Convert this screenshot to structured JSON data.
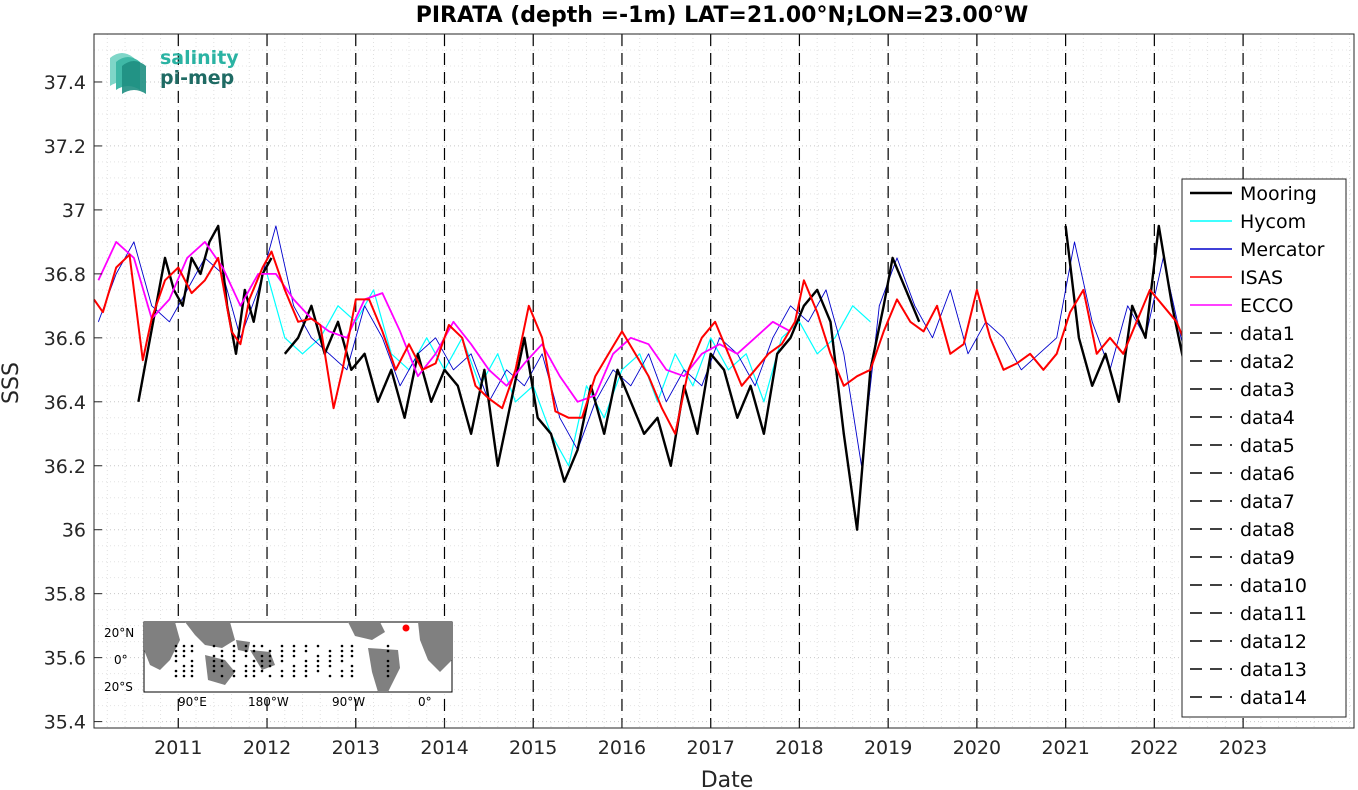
{
  "chart_data": {
    "type": "line",
    "title": "PIRATA (depth =-1m) LAT=21.00°N;LON=23.00°W",
    "xlabel": "Date",
    "ylabel": "SSS",
    "xlim": [
      2010.05,
      2024.25
    ],
    "ylim": [
      35.38,
      37.55
    ],
    "x_ticks": [
      "2011",
      "2012",
      "2013",
      "2014",
      "2015",
      "2016",
      "2017",
      "2018",
      "2019",
      "2020",
      "2021",
      "2022",
      "2023"
    ],
    "y_ticks": [
      "35.4",
      "35.6",
      "35.8",
      "36",
      "36.2",
      "36.4",
      "36.6",
      "36.8",
      "37",
      "37.2",
      "37.4"
    ],
    "grid": "on",
    "legend_position": "right",
    "vertical_lines_x": [
      2011,
      2012,
      2013,
      2014,
      2015,
      2016,
      2017,
      2018,
      2019,
      2020,
      2021,
      2022,
      2023
    ],
    "series": [
      {
        "name": "Mooring",
        "color": "#000000",
        "segments": [
          {
            "x": [
              2010.55,
              2010.65,
              2010.75,
              2010.85,
              2010.95,
              2011.05,
              2011.15,
              2011.25,
              2011.35,
              2011.45,
              2011.55,
              2011.65,
              2011.75,
              2011.85,
              2011.95,
              2012.05
            ],
            "y": [
              36.4,
              36.55,
              36.7,
              36.85,
              36.75,
              36.7,
              36.85,
              36.8,
              36.9,
              36.95,
              36.7,
              36.55,
              36.75,
              36.65,
              36.8,
              36.85
            ]
          },
          {
            "x": [
              2012.2,
              2012.35,
              2012.5,
              2012.65,
              2012.8,
              2012.95,
              2013.1,
              2013.25,
              2013.4,
              2013.55,
              2013.7,
              2013.85,
              2014.0,
              2014.15,
              2014.3,
              2014.45,
              2014.6,
              2014.75,
              2014.9,
              2015.05,
              2015.2,
              2015.35,
              2015.5,
              2015.65,
              2015.8,
              2015.95,
              2016.1,
              2016.25,
              2016.4,
              2016.55,
              2016.7,
              2016.85,
              2017.0,
              2017.15,
              2017.3,
              2017.45,
              2017.6,
              2017.75,
              2017.9,
              2018.05,
              2018.2,
              2018.35,
              2018.5,
              2018.65,
              2018.8,
              2018.95,
              2019.05,
              2019.2,
              2019.35
            ],
            "y": [
              36.55,
              36.6,
              36.7,
              36.55,
              36.65,
              36.5,
              36.55,
              36.4,
              36.5,
              36.35,
              36.55,
              36.4,
              36.5,
              36.45,
              36.3,
              36.5,
              36.2,
              36.4,
              36.6,
              36.35,
              36.3,
              36.15,
              36.25,
              36.45,
              36.3,
              36.5,
              36.4,
              36.3,
              36.35,
              36.2,
              36.45,
              36.3,
              36.55,
              36.5,
              36.35,
              36.45,
              36.3,
              36.55,
              36.6,
              36.7,
              36.75,
              36.65,
              36.3,
              36.0,
              36.5,
              36.7,
              36.85,
              36.75,
              36.65
            ]
          },
          {
            "x": [
              2021.0,
              2021.15,
              2021.3,
              2021.45,
              2021.6,
              2021.75,
              2021.9,
              2022.05,
              2022.2,
              2022.35,
              2022.45
            ],
            "y": [
              36.95,
              36.6,
              36.45,
              36.55,
              36.4,
              36.7,
              36.6,
              36.95,
              36.7,
              36.5,
              36.4
            ]
          }
        ]
      },
      {
        "name": "Hycom",
        "color": "#00ffff",
        "segments": [
          {
            "x": [
              2012.0,
              2012.2,
              2012.4,
              2012.6,
              2012.8,
              2013.0,
              2013.2,
              2013.4,
              2013.6,
              2013.8,
              2014.0,
              2014.2,
              2014.4,
              2014.6,
              2014.8,
              2015.0,
              2015.2,
              2015.4,
              2015.6,
              2015.8,
              2016.0,
              2016.2,
              2016.4,
              2016.6,
              2016.8,
              2017.0,
              2017.2,
              2017.4,
              2017.6,
              2017.8,
              2018.0,
              2018.2,
              2018.4,
              2018.6,
              2018.8
            ],
            "y": [
              36.8,
              36.6,
              36.55,
              36.6,
              36.7,
              36.65,
              36.75,
              36.55,
              36.5,
              36.6,
              36.5,
              36.6,
              36.45,
              36.55,
              36.4,
              36.45,
              36.3,
              36.2,
              36.45,
              36.35,
              36.5,
              36.55,
              36.4,
              36.55,
              36.45,
              36.6,
              36.5,
              36.55,
              36.4,
              36.6,
              36.65,
              36.55,
              36.6,
              36.7,
              36.65
            ]
          }
        ]
      },
      {
        "name": "Mercator",
        "color": "#0000cc",
        "segments": [
          {
            "x": [
              2010.1,
              2010.3,
              2010.5,
              2010.7,
              2010.9,
              2011.1,
              2011.3,
              2011.5,
              2011.7,
              2011.9,
              2012.1,
              2012.3,
              2012.5,
              2012.7,
              2012.9,
              2013.1,
              2013.3,
              2013.5,
              2013.7,
              2013.9,
              2014.1,
              2014.3,
              2014.5,
              2014.7,
              2014.9,
              2015.1,
              2015.3,
              2015.5,
              2015.7,
              2015.9,
              2016.1,
              2016.3,
              2016.5,
              2016.7,
              2016.9,
              2017.1,
              2017.3,
              2017.5,
              2017.7,
              2017.9,
              2018.1,
              2018.3,
              2018.5,
              2018.7,
              2018.9,
              2019.1,
              2019.3,
              2019.5,
              2019.7,
              2019.9,
              2020.1,
              2020.3,
              2020.5,
              2020.7,
              2020.9,
              2021.1,
              2021.3,
              2021.5,
              2021.7,
              2021.9,
              2022.1,
              2022.3,
              2022.4
            ],
            "y": [
              36.65,
              36.8,
              36.9,
              36.7,
              36.65,
              36.75,
              36.85,
              36.8,
              36.6,
              36.75,
              36.95,
              36.7,
              36.6,
              36.55,
              36.5,
              36.7,
              36.6,
              36.45,
              36.55,
              36.6,
              36.5,
              36.55,
              36.4,
              36.5,
              36.45,
              36.55,
              36.35,
              36.25,
              36.4,
              36.5,
              36.45,
              36.55,
              36.4,
              36.5,
              36.45,
              36.6,
              36.55,
              36.45,
              36.6,
              36.7,
              36.65,
              36.75,
              36.55,
              36.2,
              36.7,
              36.85,
              36.7,
              36.6,
              36.75,
              36.55,
              36.65,
              36.6,
              36.5,
              36.55,
              36.6,
              36.9,
              36.65,
              36.5,
              36.7,
              36.6,
              36.85,
              36.6,
              36.5
            ]
          }
        ]
      },
      {
        "name": "ISAS",
        "color": "#ff0000",
        "segments": [
          {
            "x": [
              2010.05,
              2010.15,
              2010.3,
              2010.45,
              2010.6,
              2010.7,
              2010.85,
              2011.0,
              2011.15,
              2011.3,
              2011.45,
              2011.6,
              2011.7,
              2011.8,
              2011.95,
              2012.05,
              2012.2,
              2012.35,
              2012.5,
              2012.6,
              2012.75,
              2012.85,
              2013.0,
              2013.15,
              2013.3,
              2013.45,
              2013.6,
              2013.75,
              2013.9,
              2014.05,
              2014.2,
              2014.35,
              2014.5,
              2014.65,
              2014.8,
              2014.95,
              2015.1,
              2015.25,
              2015.4,
              2015.55,
              2015.7,
              2015.85,
              2016.0,
              2016.15,
              2016.3,
              2016.45,
              2016.6,
              2016.75,
              2016.9,
              2017.05,
              2017.2,
              2017.35,
              2017.5,
              2017.65,
              2017.8,
              2017.95,
              2018.05,
              2018.2,
              2018.35,
              2018.5,
              2018.65,
              2018.8,
              2018.95,
              2019.1,
              2019.25,
              2019.4,
              2019.55,
              2019.7,
              2019.85,
              2020.0,
              2020.15,
              2020.3,
              2020.45,
              2020.6,
              2020.75,
              2020.9,
              2021.05,
              2021.2,
              2021.35,
              2021.5,
              2021.65,
              2021.8,
              2021.95,
              2022.1,
              2022.25,
              2022.4
            ],
            "y": [
              36.72,
              36.68,
              36.82,
              36.86,
              36.53,
              36.66,
              36.78,
              36.82,
              36.74,
              36.78,
              36.85,
              36.62,
              36.58,
              36.72,
              36.82,
              36.87,
              36.75,
              36.65,
              36.66,
              36.64,
              36.38,
              36.5,
              36.72,
              36.72,
              36.62,
              36.5,
              36.58,
              36.5,
              36.52,
              36.64,
              36.6,
              36.45,
              36.41,
              36.38,
              36.5,
              36.7,
              36.6,
              36.37,
              36.35,
              36.35,
              36.48,
              36.55,
              36.62,
              36.55,
              36.48,
              36.38,
              36.3,
              36.5,
              36.6,
              36.65,
              36.55,
              36.45,
              36.5,
              36.55,
              36.58,
              36.65,
              36.78,
              36.68,
              36.55,
              36.45,
              36.48,
              36.5,
              36.62,
              36.72,
              36.65,
              36.62,
              36.7,
              36.55,
              36.58,
              36.75,
              36.6,
              36.5,
              36.52,
              36.55,
              36.5,
              36.55,
              36.68,
              36.75,
              36.55,
              36.6,
              36.55,
              36.65,
              36.75,
              36.7,
              36.65,
              36.55
            ]
          }
        ]
      },
      {
        "name": "ECCO",
        "color": "#ff00ff",
        "segments": [
          {
            "x": [
              2010.1,
              2010.3,
              2010.5,
              2010.7,
              2010.9,
              2011.1,
              2011.3,
              2011.5,
              2011.7,
              2011.9,
              2012.1,
              2012.3,
              2012.5,
              2012.7,
              2012.9,
              2013.1,
              2013.3,
              2013.5,
              2013.7,
              2013.9,
              2014.1,
              2014.3,
              2014.5,
              2014.7,
              2014.9,
              2015.1,
              2015.3,
              2015.5,
              2015.7,
              2015.9,
              2016.1,
              2016.3,
              2016.5,
              2016.7,
              2016.9,
              2017.1,
              2017.3,
              2017.5,
              2017.7,
              2017.9
            ],
            "y": [
              36.78,
              36.9,
              36.85,
              36.66,
              36.72,
              36.85,
              36.9,
              36.82,
              36.7,
              36.8,
              36.8,
              36.72,
              36.66,
              36.62,
              36.6,
              36.72,
              36.74,
              36.62,
              36.48,
              36.55,
              36.65,
              36.58,
              36.5,
              36.45,
              36.52,
              36.58,
              36.48,
              36.4,
              36.42,
              36.55,
              36.6,
              36.58,
              36.5,
              36.48,
              36.55,
              36.58,
              36.55,
              36.6,
              36.65,
              36.62
            ]
          }
        ]
      }
    ],
    "dashed_legend_entries": [
      "data1",
      "data2",
      "data3",
      "data4",
      "data5",
      "data6",
      "data7",
      "data8",
      "data9",
      "data10",
      "data11",
      "data12",
      "data13",
      "data14"
    ]
  },
  "logo": {
    "line1": "salinity",
    "line2": "pi-mep"
  },
  "inset_map": {
    "lat_labels": [
      "20°N",
      "0°",
      "20°S"
    ],
    "lon_labels": [
      "90°E",
      "180°W",
      "90°W",
      "0°"
    ],
    "land_color": "#808080",
    "sea_color": "#ffffff",
    "marker_color": "#ff0000"
  }
}
